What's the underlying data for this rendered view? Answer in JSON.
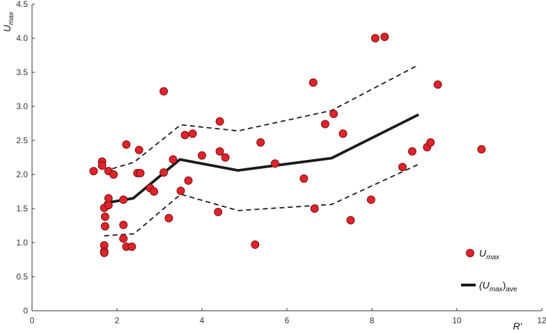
{
  "chart_data": {
    "type": "scatter",
    "xlabel": "R′",
    "ylabel": "U",
    "ylabel_sub": "max",
    "xlim": [
      0,
      12
    ],
    "ylim": [
      0,
      4.5
    ],
    "x_ticks": [
      0,
      2,
      4,
      6,
      8,
      10,
      12
    ],
    "y_ticks": [
      0,
      0.5,
      1.0,
      1.5,
      2.0,
      2.5,
      3.0,
      3.5,
      4.0,
      4.5
    ],
    "x_tick_labels": [
      "0",
      "2",
      "4",
      "6",
      "8",
      "10",
      "12"
    ],
    "y_tick_labels": [
      "0",
      "0.5",
      "1.0",
      "1.5",
      "2.0",
      "2.5",
      "3.0",
      "3.5",
      "4.0",
      "4.5"
    ],
    "grid": false,
    "legend_position": "bottom-right",
    "colors": {
      "marker_fill": "#e0242a",
      "marker_edge": "#7a1012",
      "line": "#1a1a1a",
      "axis": "#333333"
    },
    "series": [
      {
        "name": "U_max",
        "legend_main": "U",
        "legend_sub": "max",
        "type": "scatter",
        "points": [
          [
            1.45,
            2.05
          ],
          [
            1.65,
            2.19
          ],
          [
            1.65,
            2.13
          ],
          [
            1.7,
            1.51
          ],
          [
            1.72,
            1.38
          ],
          [
            1.72,
            1.24
          ],
          [
            1.7,
            0.96
          ],
          [
            1.7,
            0.87
          ],
          [
            1.7,
            0.85
          ],
          [
            1.8,
            1.65
          ],
          [
            1.8,
            1.55
          ],
          [
            1.8,
            2.05
          ],
          [
            1.92,
            2.0
          ],
          [
            2.15,
            1.63
          ],
          [
            2.15,
            1.26
          ],
          [
            2.15,
            1.06
          ],
          [
            2.22,
            0.94
          ],
          [
            2.22,
            2.44
          ],
          [
            2.35,
            0.94
          ],
          [
            2.48,
            2.02
          ],
          [
            2.52,
            2.36
          ],
          [
            2.55,
            2.02
          ],
          [
            2.78,
            1.8
          ],
          [
            2.87,
            1.75
          ],
          [
            3.1,
            3.22
          ],
          [
            3.1,
            2.03
          ],
          [
            3.22,
            1.36
          ],
          [
            3.32,
            2.22
          ],
          [
            3.5,
            1.76
          ],
          [
            3.6,
            2.58
          ],
          [
            3.68,
            1.91
          ],
          [
            3.78,
            2.6
          ],
          [
            4.0,
            2.28
          ],
          [
            4.38,
            1.45
          ],
          [
            4.42,
            2.78
          ],
          [
            4.42,
            2.34
          ],
          [
            4.55,
            2.25
          ],
          [
            5.25,
            0.97
          ],
          [
            5.38,
            2.47
          ],
          [
            5.72,
            2.16
          ],
          [
            6.4,
            1.94
          ],
          [
            6.62,
            3.35
          ],
          [
            6.65,
            1.5
          ],
          [
            6.9,
            2.74
          ],
          [
            7.1,
            2.89
          ],
          [
            7.32,
            2.6
          ],
          [
            7.5,
            1.33
          ],
          [
            7.98,
            1.63
          ],
          [
            8.08,
            4.0
          ],
          [
            8.3,
            4.02
          ],
          [
            8.72,
            2.11
          ],
          [
            8.95,
            2.34
          ],
          [
            9.3,
            2.4
          ],
          [
            9.38,
            2.47
          ],
          [
            9.55,
            3.32
          ],
          [
            10.58,
            2.37
          ]
        ]
      },
      {
        "name": "(U_max)_ave",
        "legend_main": "(U",
        "legend_sub": "max",
        "legend_tail": ")",
        "legend_sub2": "ave",
        "type": "line",
        "style": "solid",
        "points": [
          [
            1.7,
            1.58
          ],
          [
            2.38,
            1.65
          ],
          [
            3.48,
            2.22
          ],
          [
            4.85,
            2.06
          ],
          [
            7.05,
            2.24
          ],
          [
            9.1,
            2.88
          ]
        ]
      },
      {
        "type": "line",
        "style": "dashed",
        "points": [
          [
            1.7,
            2.05
          ],
          [
            2.4,
            2.18
          ],
          [
            3.5,
            2.73
          ],
          [
            4.85,
            2.64
          ],
          [
            7.05,
            2.94
          ],
          [
            9.1,
            3.61
          ]
        ]
      },
      {
        "type": "line",
        "style": "dashed",
        "points": [
          [
            1.7,
            1.1
          ],
          [
            2.4,
            1.13
          ],
          [
            3.5,
            1.71
          ],
          [
            4.85,
            1.47
          ],
          [
            7.05,
            1.56
          ],
          [
            9.1,
            2.15
          ]
        ]
      }
    ]
  }
}
